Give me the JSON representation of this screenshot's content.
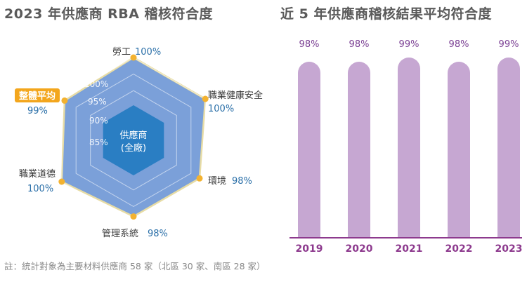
{
  "chart_data": [
    {
      "type": "radar",
      "title": "2023 年供應商 RBA 稽核符合度",
      "center_label_1": "供應商",
      "center_label_2": "(全廠)",
      "rings": [
        "100%",
        "95%",
        "90%",
        "85%"
      ],
      "ring_values": [
        100,
        95,
        90,
        85
      ],
      "scale_min": 75,
      "scale_max": 100,
      "axes": [
        {
          "label": "勞工",
          "value": 100,
          "value_label": "100%",
          "highlight": false
        },
        {
          "label": "職業健康安全",
          "value": 100,
          "value_label": "100%",
          "highlight": false
        },
        {
          "label": "環境",
          "value": 98,
          "value_label": "98%",
          "highlight": false
        },
        {
          "label": "管理系統",
          "value": 98,
          "value_label": "98%",
          "highlight": false
        },
        {
          "label": "職業道德",
          "value": 100,
          "value_label": "100%",
          "highlight": false
        },
        {
          "label": "整體平均",
          "value": 99,
          "value_label": "99%",
          "highlight": true
        }
      ],
      "colors": {
        "fill": "#7ba0d9",
        "center": "#2a7ec3",
        "line": "#e7dca5",
        "point": "#f3b230",
        "highlight_bg": "#f3a61d",
        "value_text": "#2a6fa8"
      }
    },
    {
      "type": "bar",
      "title": "近 5 年供應商稽核結果平均符合度",
      "categories": [
        "2019",
        "2020",
        "2021",
        "2022",
        "2023"
      ],
      "values": [
        98,
        98,
        99,
        98,
        99
      ],
      "value_labels": [
        "98%",
        "98%",
        "99%",
        "98%",
        "99%"
      ],
      "colors": {
        "bar": "#c6a7d2",
        "label": "#7a3f93",
        "axis": "#8d3a8e"
      }
    }
  ],
  "note": "註：統計對象為主要材料供應商 58 家（北區 30 家、南區 28 家）"
}
